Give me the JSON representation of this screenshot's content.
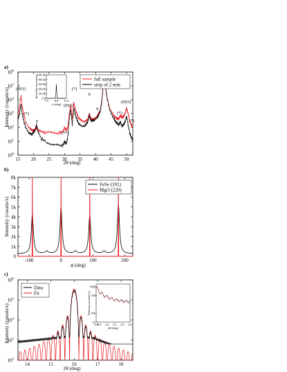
{
  "colors": {
    "black_series": "#000000",
    "red_series": "#e8151b"
  },
  "chart_data": [
    {
      "panel": "a)",
      "type": "line",
      "xlabel": "2θ (deg)",
      "ylabel": "Intensity (counts/s)",
      "xlim": [
        15,
        52
      ],
      "ylim_log10": [
        0,
        6
      ],
      "yscale": "log",
      "xticks": [
        "15",
        "20",
        "25",
        "30",
        "35",
        "40",
        "45",
        "50"
      ],
      "yticks": [
        "10",
        "10",
        "10",
        "10",
        "10",
        "10",
        "10"
      ],
      "ytick_exponents": [
        "0",
        "1",
        "2",
        "3",
        "4",
        "5",
        "6"
      ],
      "legend_position": "top-right",
      "series": [
        {
          "name": "full sample",
          "color": "#e8151b",
          "x": [
            15.0,
            15.5,
            16.0,
            16.3,
            16.8,
            17.5,
            18.5,
            19.5,
            20.5,
            21.0,
            21.5,
            22.5,
            24,
            26,
            28,
            29.5,
            30.0,
            30.5,
            31.0,
            31.5,
            32.0,
            32.5,
            33.0,
            33.5,
            34.5,
            35.5,
            36.5,
            37.5,
            38.0,
            38.5,
            39.5,
            40.5,
            41.0,
            41.5,
            42.0,
            42.5,
            43.0,
            43.5,
            44.5,
            45.5,
            46.5,
            47.5,
            48.0,
            48.5,
            49.0,
            49.5,
            50.0,
            50.5,
            51.0,
            51.5,
            52.0
          ],
          "log10y": [
            3.0,
            3.5,
            4.3,
            3.6,
            3.0,
            2.4,
            2.0,
            1.8,
            1.8,
            2.0,
            1.8,
            1.7,
            1.6,
            1.6,
            1.6,
            1.7,
            2.0,
            1.8,
            2.0,
            3.0,
            3.6,
            2.6,
            3.8,
            3.3,
            2.7,
            2.5,
            2.4,
            2.6,
            3.0,
            2.6,
            2.6,
            2.8,
            3.0,
            3.2,
            3.8,
            5.1,
            5.6,
            4.4,
            3.4,
            3.0,
            2.7,
            2.6,
            2.9,
            2.7,
            2.8,
            3.0,
            3.4,
            3.0,
            2.5,
            2.2,
            2.0
          ]
        },
        {
          "name": "strip of 2 mm",
          "color": "#000000",
          "x": [
            15.0,
            15.5,
            16.0,
            16.3,
            16.8,
            17.5,
            18.5,
            19.5,
            20.5,
            21.0,
            21.5,
            22.5,
            24,
            26,
            28,
            29.5,
            30.0,
            30.5,
            31.0,
            31.5,
            32.0,
            32.5,
            33.0,
            33.5,
            34.5,
            35.5,
            36.5,
            37.5,
            38.0,
            38.5,
            39.5,
            40.5,
            41.0,
            41.5,
            42.0,
            42.5,
            43.0,
            43.5,
            44.5,
            45.5,
            46.5,
            47.5,
            48.0,
            48.5,
            49.0,
            49.5,
            50.0,
            50.5,
            51.0,
            51.5,
            52.0
          ],
          "log10y": [
            2.6,
            3.0,
            3.7,
            3.1,
            2.5,
            2.0,
            1.6,
            1.5,
            1.8,
            2.2,
            1.7,
            1.2,
            1.0,
            0.8,
            0.7,
            0.7,
            1.0,
            0.8,
            1.2,
            2.5,
            3.3,
            2.2,
            3.4,
            2.9,
            2.3,
            2.1,
            2.1,
            2.4,
            2.9,
            2.5,
            2.5,
            2.7,
            2.9,
            3.2,
            3.9,
            5.2,
            5.7,
            4.4,
            3.3,
            2.8,
            2.4,
            2.2,
            2.4,
            2.1,
            2.2,
            2.4,
            2.8,
            2.2,
            1.6,
            1.3,
            1.1
          ]
        }
      ],
      "annotations": [
        {
          "text": "(001)",
          "x": 15.9,
          "log10y": 4.7
        },
        {
          "text": "(*)",
          "x": 17.7,
          "log10y": 2.9
        },
        {
          "text": "S",
          "x": 21.1,
          "log10y": 2.35
        },
        {
          "text": "(**)",
          "x": 30.2,
          "log10y": 1.5
        },
        {
          "text": "(002)",
          "x": 31.3,
          "log10y": 3.5
        },
        {
          "text": "(*)",
          "x": 33.2,
          "log10y": 4.7
        },
        {
          "text": "S",
          "x": 38.0,
          "log10y": 4.3
        },
        {
          "text": "S",
          "x": 40.6,
          "log10y": 3.25
        },
        {
          "text": "S",
          "x": 41.9,
          "log10y": 4.95
        },
        {
          "text": "(003)",
          "x": 49.8,
          "log10y": 3.75
        },
        {
          "text": "(*)",
          "x": 47.8,
          "log10y": 2.95
        },
        {
          "text": "(*)",
          "x": 51.6,
          "log10y": 2.4
        }
      ],
      "inset": {
        "xlabel": "ω (deg)",
        "ylabel": "Intensity (counts/s)",
        "xticks": [
          "7.6",
          "8.0",
          "8.4"
        ],
        "yticks": [
          "0.0",
          "20.0k",
          "40.0k",
          "60.0k",
          "80.0k",
          "100.0k"
        ],
        "xlim": [
          7.6,
          8.4
        ],
        "ylim": [
          0,
          100000
        ],
        "x": [
          7.6,
          7.95,
          7.98,
          8.0,
          8.02,
          8.05,
          8.4
        ],
        "y": [
          0,
          500,
          20000,
          60000,
          18000,
          500,
          0
        ]
      }
    },
    {
      "panel": "b)",
      "type": "line",
      "xlabel": "ϕ (deg)",
      "ylabel": "Intensity (counts/s)",
      "xlim": [
        -135,
        225
      ],
      "ylim": [
        0,
        8000
      ],
      "xticks": [
        "-100",
        "0",
        "100",
        "200"
      ],
      "yticks": [
        "0",
        "1k",
        "2k",
        "3k",
        "4k",
        "5k",
        "6k",
        "7k",
        "8k"
      ],
      "legend_position": "top-right",
      "series": [
        {
          "name": "FeSe (101)",
          "color": "#000000",
          "peaks_x": [
            -90,
            0,
            90,
            180
          ],
          "peaks_y": [
            4200,
            4900,
            4100,
            5200
          ],
          "width_deg": 4,
          "baseline": 250,
          "satellite_x": [
            -45,
            45,
            135
          ],
          "satellite_y": 500
        },
        {
          "name": "MgO (220)",
          "color": "#e8151b",
          "peaks_x": [
            -90,
            0,
            90,
            180
          ],
          "peaks_y": [
            8000,
            8000,
            8000,
            8000
          ],
          "width_deg": 0.8,
          "baseline": 0
        }
      ]
    },
    {
      "panel": "c)",
      "type": "line",
      "xlabel": "2θ (deg)",
      "ylabel": "Intensity (counts/s)",
      "xlim": [
        13.6,
        18.5
      ],
      "ylim_log10": [
        2,
        6
      ],
      "yscale": "log",
      "xticks": [
        "14",
        "15",
        "16",
        "17",
        "18"
      ],
      "yticks": [
        "10",
        "10",
        "10",
        "10",
        "10"
      ],
      "ytick_exponents": [
        "2",
        "3",
        "4",
        "5",
        "6"
      ],
      "legend_position": "top-left",
      "series": [
        {
          "name": "Data",
          "color": "#000000",
          "center": 16.0,
          "peak_log10": 5.45,
          "fringe_period": 0.2,
          "decay": 0.55,
          "floor_log10": 2.6
        },
        {
          "name": "Fit",
          "color": "#e8151b",
          "center": 16.0,
          "peak_log10": 5.55,
          "fringe_period": 0.2,
          "decay": 0.55,
          "floor_log10": 2.0
        }
      ],
      "inset": {
        "xlabel": "2θ (deg)",
        "ylabel": "Intensity (counts/s)",
        "xticks": [
          "0.0",
          "0.5",
          "1.0",
          "1.5",
          "2.0",
          "2.5"
        ],
        "yticks": [
          "1k",
          "10k",
          "1M",
          "10M"
        ],
        "xlim": [
          0.3,
          2.5
        ],
        "ylim_log10": [
          3,
          7.3
        ],
        "series": [
          {
            "name": "Data",
            "color": "#000000"
          },
          {
            "name": "Fit",
            "color": "#e8151b"
          }
        ]
      }
    }
  ]
}
